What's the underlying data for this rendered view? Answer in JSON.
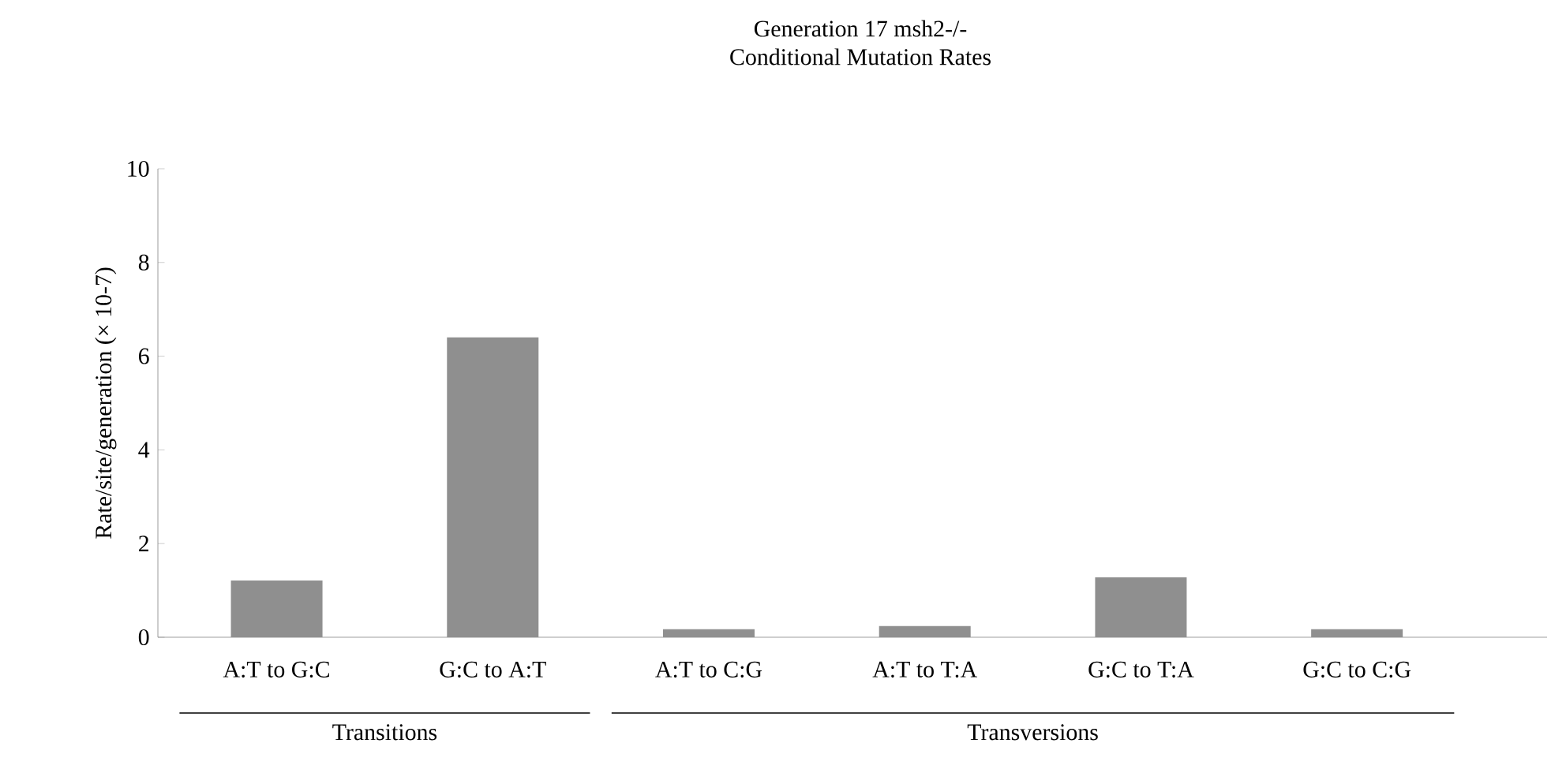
{
  "chart_data": {
    "type": "bar",
    "title": "Generation 17 msh2-/-",
    "subtitle": "Conditional Mutation Rates",
    "ylabel": "Rate/site/generation  (× 10-7)",
    "categories": [
      "A:T to G:C",
      "G:C to A:T",
      "A:T to C:G",
      "A:T to T:A",
      "G:C to T:A",
      "G:C to C:G"
    ],
    "values": [
      1.21,
      6.4,
      0.17,
      0.24,
      1.28,
      0.17
    ],
    "color": "#8f8f8f",
    "ylim": [
      0,
      10
    ],
    "yticks": [
      0,
      2,
      4,
      6,
      8,
      10
    ],
    "grid": false,
    "annotations": [
      "Transitions",
      "Transversions"
    ]
  }
}
